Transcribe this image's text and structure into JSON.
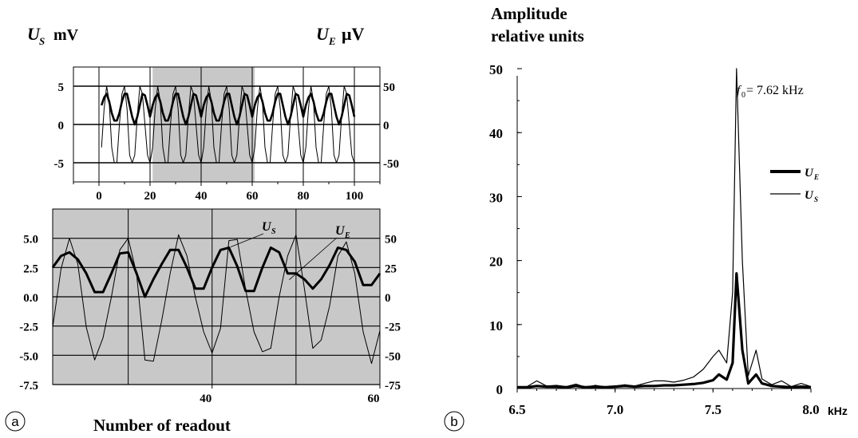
{
  "panel_a": {
    "label": "a",
    "y_left_title_main": "U",
    "y_left_title_sub": "S",
    "y_left_title_unit": "mV",
    "y_right_title_main": "U",
    "y_right_title_sub": "E",
    "y_right_title_unit": "μV",
    "xlabel": "Number of readout"
  },
  "panel_b": {
    "label": "b",
    "title_line1": "Amplitude",
    "title_line2": "relative units",
    "annotation_main": "f",
    "annotation_sub": "0",
    "annotation_rest": " = 7.62 kHz",
    "x_unit": "kHz"
  },
  "chart_data": [
    {
      "id": "a-top",
      "type": "line",
      "x": [
        1,
        2,
        3,
        4,
        5,
        6,
        7,
        8,
        9,
        10,
        11,
        12,
        13,
        14,
        15,
        16,
        17,
        18,
        19,
        20,
        21,
        22,
        23,
        24,
        25,
        26,
        27,
        28,
        29,
        30,
        31,
        32,
        33,
        34,
        35,
        36,
        37,
        38,
        39,
        40,
        41,
        42,
        43,
        44,
        45,
        46,
        47,
        48,
        49,
        50,
        51,
        52,
        53,
        54,
        55,
        56,
        57,
        58,
        59,
        60,
        61,
        62,
        63,
        64,
        65,
        66,
        67,
        68,
        69,
        70,
        71,
        72,
        73,
        74,
        75,
        76,
        77,
        78,
        79,
        80,
        81,
        82,
        83,
        84,
        85,
        86,
        87,
        88,
        89,
        90,
        91,
        92,
        93,
        94,
        95,
        96,
        97,
        98,
        99,
        100
      ],
      "series": [
        {
          "name": "US",
          "axis": "left",
          "values": [
            -3,
            2,
            5,
            3,
            -3,
            -5,
            -5,
            0,
            4,
            5,
            2,
            -4,
            -5,
            -4,
            1,
            5,
            4,
            0,
            -4,
            -5,
            -3,
            2,
            5,
            3,
            -3,
            -5,
            -5,
            0,
            4,
            5,
            2,
            -4,
            -5,
            -4,
            1,
            5,
            4,
            0,
            -4,
            -5,
            -3,
            2,
            5,
            3,
            -3,
            -5,
            -5,
            0,
            4,
            5,
            2,
            -4,
            -5,
            -4,
            1,
            5,
            4,
            0,
            -4,
            -5,
            -3,
            2,
            5,
            3,
            -3,
            -5,
            -5,
            0,
            4,
            5,
            2,
            -4,
            -5,
            -4,
            1,
            5,
            4,
            0,
            -4,
            -5,
            -3,
            2,
            5,
            3,
            -3,
            -5,
            -5,
            0,
            4,
            5,
            2,
            -4,
            -5,
            -4,
            1,
            5,
            4,
            0,
            -4,
            -5
          ]
        },
        {
          "name": "UE",
          "axis": "right",
          "values": [
            25,
            35,
            40,
            30,
            15,
            5,
            5,
            15,
            30,
            40,
            40,
            25,
            10,
            0,
            10,
            25,
            40,
            38,
            25,
            10,
            25,
            35,
            40,
            30,
            15,
            5,
            5,
            15,
            30,
            40,
            40,
            25,
            10,
            0,
            10,
            25,
            40,
            38,
            25,
            10,
            25,
            35,
            40,
            30,
            15,
            5,
            5,
            15,
            30,
            40,
            40,
            25,
            10,
            0,
            10,
            25,
            40,
            38,
            25,
            10,
            25,
            35,
            40,
            30,
            15,
            5,
            5,
            15,
            30,
            40,
            40,
            25,
            10,
            0,
            10,
            25,
            40,
            38,
            25,
            10,
            25,
            35,
            40,
            30,
            15,
            5,
            5,
            15,
            30,
            40,
            40,
            25,
            10,
            0,
            10,
            25,
            40,
            38,
            25,
            10
          ]
        }
      ],
      "xlim": [
        -10,
        110
      ],
      "xticks": [
        0,
        20,
        40,
        60,
        80,
        100
      ],
      "ylim_left": [
        -7.5,
        7.5
      ],
      "yticks_left": [
        "-5",
        "0",
        "5"
      ],
      "ylim_right": [
        -75,
        75
      ],
      "yticks_right": [
        "-50",
        "0",
        "50"
      ],
      "highlight_range": [
        21,
        61
      ]
    },
    {
      "id": "a-zoom",
      "type": "line",
      "x": [
        21,
        22,
        23,
        24,
        25,
        26,
        27,
        28,
        29,
        30,
        31,
        32,
        33,
        34,
        35,
        36,
        37,
        38,
        39,
        40,
        41,
        42,
        43,
        44,
        45,
        46,
        47,
        48,
        49,
        50,
        51,
        52,
        53,
        54,
        55,
        56,
        57,
        58,
        59,
        60
      ],
      "series": [
        {
          "name": "US",
          "axis": "left",
          "values": [
            -2.6,
            2.4,
            5.0,
            2.8,
            -2.6,
            -5.4,
            -3.5,
            0.0,
            4.0,
            5.0,
            2.0,
            -5.4,
            -5.5,
            -2.0,
            2.0,
            5.3,
            3.5,
            0.0,
            -3.0,
            -4.8,
            -2.7,
            4.8,
            4.9,
            0.6,
            -3.0,
            -4.7,
            -4.4,
            0.0,
            3.5,
            5.3,
            0.7,
            -4.4,
            -3.7,
            -0.8,
            3.5,
            4.7,
            2.0,
            -3.0,
            -5.7,
            -2.9
          ]
        },
        {
          "name": "UE",
          "axis": "right",
          "values": [
            25,
            35,
            38,
            32,
            20,
            4,
            4,
            20,
            37,
            38,
            20,
            0,
            15,
            28,
            40,
            40,
            25,
            7,
            7,
            25,
            40,
            42,
            26,
            5,
            5,
            25,
            42,
            38,
            20,
            20,
            15,
            7,
            15,
            27,
            42,
            40,
            30,
            10,
            10,
            20
          ]
        }
      ],
      "xlim": [
        21,
        60
      ],
      "xticks": [
        40,
        60
      ],
      "ylim_left": [
        -7.5,
        7.5
      ],
      "yticks_left": [
        "5.0",
        "2.5",
        "0.0",
        "-2.5",
        "-5.0",
        "-7.5"
      ],
      "ylim_right": [
        -75,
        75
      ],
      "yticks_right": [
        "50",
        "25",
        "0",
        "-25",
        "-50",
        "-75"
      ],
      "series_labels": [
        {
          "main": "U",
          "sub": "S"
        },
        {
          "main": "U",
          "sub": "E"
        }
      ]
    },
    {
      "id": "b-spectrum",
      "type": "line",
      "x": [
        6.5,
        6.55,
        6.6,
        6.65,
        6.7,
        6.75,
        6.8,
        6.85,
        6.9,
        6.95,
        7.0,
        7.05,
        7.1,
        7.15,
        7.2,
        7.25,
        7.3,
        7.35,
        7.4,
        7.45,
        7.5,
        7.53,
        7.57,
        7.6,
        7.62,
        7.65,
        7.68,
        7.72,
        7.75,
        7.8,
        7.85,
        7.9,
        7.95,
        8.0
      ],
      "series": [
        {
          "name": "UE",
          "values": [
            0.2,
            0.2,
            0.4,
            0.3,
            0.3,
            0.2,
            0.4,
            0.2,
            0.3,
            0.2,
            0.3,
            0.4,
            0.3,
            0.4,
            0.4,
            0.5,
            0.5,
            0.6,
            0.7,
            0.9,
            1.3,
            2.2,
            1.4,
            4.0,
            18.0,
            6.0,
            0.8,
            2.2,
            0.8,
            0.4,
            0.3,
            0.2,
            0.3,
            0.2
          ]
        },
        {
          "name": "US",
          "values": [
            0.3,
            0.3,
            1.2,
            0.4,
            0.5,
            0.3,
            0.7,
            0.2,
            0.5,
            0.2,
            0.4,
            0.6,
            0.4,
            0.8,
            1.2,
            1.2,
            1.0,
            1.3,
            1.8,
            3.0,
            5.0,
            6.0,
            4.0,
            15.0,
            50.0,
            20.0,
            2.0,
            6.0,
            1.5,
            0.6,
            1.2,
            0.3,
            0.8,
            0.3
          ]
        }
      ],
      "xlim": [
        6.5,
        8.0
      ],
      "xticks": [
        "6.5",
        "7.0",
        "7.5",
        "8.0"
      ],
      "ylim": [
        0,
        52
      ],
      "yticks": [
        "0",
        "10",
        "20",
        "30",
        "40",
        "50"
      ],
      "legend_position": "right",
      "legend": [
        {
          "main": "U",
          "sub": "E"
        },
        {
          "main": "U",
          "sub": "S"
        }
      ]
    }
  ]
}
